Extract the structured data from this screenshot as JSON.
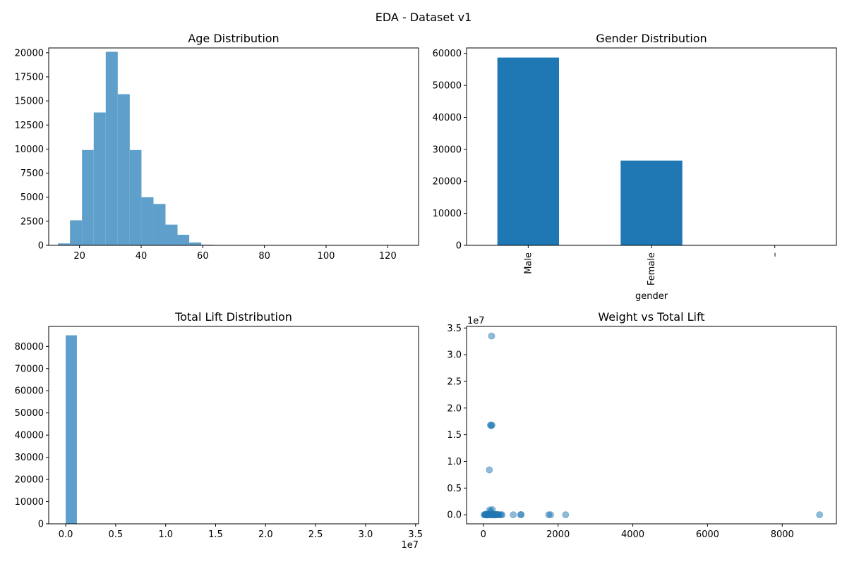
{
  "figure": {
    "suptitle": "EDA - Dataset v1"
  },
  "colors": {
    "bar": "#1f77b4",
    "hist": "#5f9fcc",
    "scatter": "#1f77b4"
  },
  "chart_data": [
    {
      "type": "histogram",
      "title": "Age Distribution",
      "xlabel": "",
      "ylabel": "",
      "xlim": [
        10,
        130
      ],
      "ylim": [
        0,
        20500
      ],
      "xticks": [
        "20",
        "40",
        "60",
        "80",
        "100",
        "120"
      ],
      "yticks": [
        "0",
        "2500",
        "5000",
        "7500",
        "10000",
        "12500",
        "15000",
        "17500",
        "20000"
      ],
      "bins": [
        {
          "x0": 13.0,
          "x1": 16.9,
          "count": 200
        },
        {
          "x0": 16.9,
          "x1": 20.8,
          "count": 2600
        },
        {
          "x0": 20.8,
          "x1": 24.6,
          "count": 9900
        },
        {
          "x0": 24.6,
          "x1": 28.5,
          "count": 13800
        },
        {
          "x0": 28.5,
          "x1": 32.4,
          "count": 20100
        },
        {
          "x0": 32.4,
          "x1": 36.3,
          "count": 15700
        },
        {
          "x0": 36.3,
          "x1": 40.1,
          "count": 9900
        },
        {
          "x0": 40.1,
          "x1": 44.0,
          "count": 5000
        },
        {
          "x0": 44.0,
          "x1": 47.9,
          "count": 4300
        },
        {
          "x0": 47.9,
          "x1": 51.8,
          "count": 2150
        },
        {
          "x0": 51.8,
          "x1": 55.6,
          "count": 1100
        },
        {
          "x0": 55.6,
          "x1": 59.5,
          "count": 300
        },
        {
          "x0": 59.5,
          "x1": 63.4,
          "count": 60
        },
        {
          "x0": 63.4,
          "x1": 67.3,
          "count": 20
        }
      ]
    },
    {
      "type": "bar",
      "title": "Gender Distribution",
      "xlabel": "gender",
      "ylabel": "",
      "ylim": [
        0,
        61700
      ],
      "categories": [
        "Male",
        "Female",
        "–"
      ],
      "values": [
        58700,
        26500,
        5
      ],
      "yticks": [
        "0",
        "10000",
        "20000",
        "30000",
        "40000",
        "50000",
        "60000"
      ]
    },
    {
      "type": "histogram",
      "title": "Total Lift Distribution",
      "xlabel": "",
      "ylabel": "",
      "xlim": [
        -1700000,
        35300000
      ],
      "ylim": [
        0,
        89000
      ],
      "offset_label": "1e7",
      "xticks": [
        "0.0",
        "0.5",
        "1.0",
        "1.5",
        "2.0",
        "2.5",
        "3.0",
        "3.5"
      ],
      "yticks": [
        "0",
        "10000",
        "20000",
        "30000",
        "40000",
        "50000",
        "60000",
        "70000",
        "80000"
      ],
      "bins": [
        {
          "x0": 0,
          "x1": 1120000,
          "count": 85000
        }
      ]
    },
    {
      "type": "scatter",
      "title": "Weight vs Total Lift",
      "xlabel": "",
      "ylabel": "",
      "xlim": [
        -450,
        9450
      ],
      "ylim": [
        -1700000,
        35300000
      ],
      "offset_label": "1e7",
      "xticks": [
        "0",
        "2000",
        "4000",
        "6000",
        "8000"
      ],
      "yticks": [
        "0.0",
        "0.5",
        "1.0",
        "1.5",
        "2.0",
        "2.5",
        "3.0",
        "3.5"
      ],
      "points": [
        [
          220,
          33500000
        ],
        [
          190,
          16800000
        ],
        [
          230,
          16800000
        ],
        [
          210,
          16700000
        ],
        [
          160,
          8400000
        ],
        [
          170,
          900000
        ],
        [
          240,
          950000
        ],
        [
          200,
          600000
        ],
        [
          20,
          0
        ],
        [
          40,
          0
        ],
        [
          60,
          0
        ],
        [
          80,
          0
        ],
        [
          100,
          0
        ],
        [
          120,
          0
        ],
        [
          140,
          0
        ],
        [
          160,
          0
        ],
        [
          180,
          0
        ],
        [
          200,
          0
        ],
        [
          220,
          0
        ],
        [
          240,
          0
        ],
        [
          260,
          0
        ],
        [
          280,
          0
        ],
        [
          300,
          0
        ],
        [
          320,
          0
        ],
        [
          340,
          0
        ],
        [
          360,
          0
        ],
        [
          380,
          0
        ],
        [
          400,
          0
        ],
        [
          430,
          0
        ],
        [
          470,
          0
        ],
        [
          500,
          0
        ],
        [
          60,
          100000
        ],
        [
          110,
          80000
        ],
        [
          150,
          120000
        ],
        [
          250,
          90000
        ],
        [
          320,
          60000
        ],
        [
          380,
          40000
        ],
        [
          90,
          -60000
        ],
        [
          200,
          -40000
        ],
        [
          300,
          -50000
        ],
        [
          800,
          0
        ],
        [
          1000,
          0
        ],
        [
          1010,
          30000
        ],
        [
          1750,
          0
        ],
        [
          1800,
          0
        ],
        [
          2200,
          0
        ],
        [
          9000,
          0
        ]
      ]
    }
  ]
}
